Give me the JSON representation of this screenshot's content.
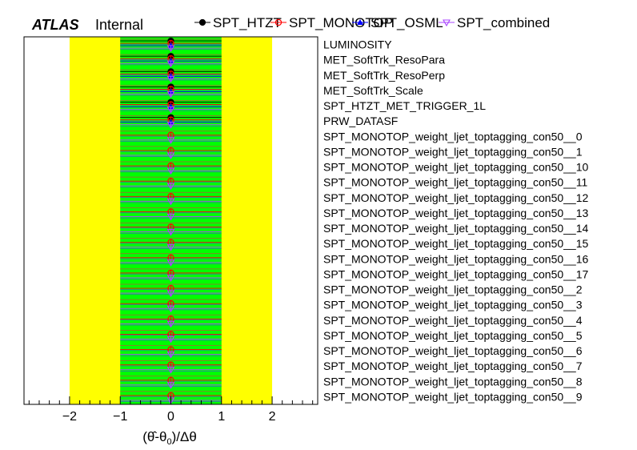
{
  "chart_data": {
    "type": "scatter",
    "experiment": "ATLAS",
    "status": "Internal",
    "xlabel": "(θ̂-θ0)/Δθ",
    "xlim": [
      -2.9,
      2.9
    ],
    "xticks": [
      "−2",
      "−1",
      "0",
      "1",
      "2"
    ],
    "xtick_values": [
      -2,
      -1,
      0,
      1,
      2
    ],
    "band_2sigma": [
      -2,
      2
    ],
    "band_1sigma": [
      -1,
      1
    ],
    "band_colors": {
      "outer": "#ffff00",
      "inner": "#00ff00"
    },
    "nuisance_parameters": [
      "LUMINOSITY",
      "MET_SoftTrk_ResoPara",
      "MET_SoftTrk_ResoPerp",
      "MET_SoftTrk_Scale",
      "SPT_HTZT_MET_TRIGGER_1L",
      "PRW_DATASF",
      "SPT_MONOTOP_weight_ljet_toptagging_con50__0",
      "SPT_MONOTOP_weight_ljet_toptagging_con50__1",
      "SPT_MONOTOP_weight_ljet_toptagging_con50__10",
      "SPT_MONOTOP_weight_ljet_toptagging_con50__11",
      "SPT_MONOTOP_weight_ljet_toptagging_con50__12",
      "SPT_MONOTOP_weight_ljet_toptagging_con50__13",
      "SPT_MONOTOP_weight_ljet_toptagging_con50__14",
      "SPT_MONOTOP_weight_ljet_toptagging_con50__15",
      "SPT_MONOTOP_weight_ljet_toptagging_con50__16",
      "SPT_MONOTOP_weight_ljet_toptagging_con50__17",
      "SPT_MONOTOP_weight_ljet_toptagging_con50__2",
      "SPT_MONOTOP_weight_ljet_toptagging_con50__3",
      "SPT_MONOTOP_weight_ljet_toptagging_con50__4",
      "SPT_MONOTOP_weight_ljet_toptagging_con50__5",
      "SPT_MONOTOP_weight_ljet_toptagging_con50__6",
      "SPT_MONOTOP_weight_ljet_toptagging_con50__7",
      "SPT_MONOTOP_weight_ljet_toptagging_con50__8",
      "SPT_MONOTOP_weight_ljet_toptagging_con50__9"
    ],
    "series": [
      {
        "name": "SPT_HTZT",
        "marker": "circle",
        "color": "#000000",
        "values": [
          0,
          0,
          0,
          0,
          0,
          0,
          null,
          null,
          null,
          null,
          null,
          null,
          null,
          null,
          null,
          null,
          null,
          null,
          null,
          null,
          null,
          null,
          null,
          null
        ],
        "errors": [
          1,
          1,
          1,
          1,
          1,
          1,
          null,
          null,
          null,
          null,
          null,
          null,
          null,
          null,
          null,
          null,
          null,
          null,
          null,
          null,
          null,
          null,
          null,
          null
        ]
      },
      {
        "name": "SPT_MONOTOP",
        "marker": "open-circle",
        "color": "#ff0000",
        "values": [
          0,
          0,
          0,
          0,
          0,
          0,
          0,
          0,
          0,
          0,
          0,
          0,
          0,
          0,
          0,
          0,
          0,
          0,
          0,
          0,
          0,
          0,
          0,
          0
        ],
        "errors": [
          1,
          1,
          1,
          1,
          1,
          1,
          1,
          1,
          1,
          1,
          1,
          1,
          1,
          1,
          1,
          1,
          1,
          1,
          1,
          1,
          1,
          1,
          1,
          1
        ]
      },
      {
        "name": "SPT_OSML",
        "marker": "triangle",
        "color": "#0000ff",
        "values": [
          0,
          0,
          0,
          0,
          0,
          0,
          null,
          null,
          null,
          null,
          null,
          null,
          null,
          null,
          null,
          null,
          null,
          null,
          null,
          null,
          null,
          null,
          null,
          null
        ],
        "errors": [
          1,
          1,
          1,
          1,
          1,
          1,
          null,
          null,
          null,
          null,
          null,
          null,
          null,
          null,
          null,
          null,
          null,
          null,
          null,
          null,
          null,
          null,
          null,
          null
        ]
      },
      {
        "name": "SPT_combined",
        "marker": "open-triangle-down",
        "color": "#aa44ff",
        "values": [
          0,
          0,
          0,
          0,
          0,
          0,
          0,
          0,
          0,
          0,
          0,
          0,
          0,
          0,
          0,
          0,
          0,
          0,
          0,
          0,
          0,
          0,
          0,
          0
        ],
        "errors": [
          1,
          1,
          1,
          1,
          1,
          1,
          1,
          1,
          1,
          1,
          1,
          1,
          1,
          1,
          1,
          1,
          1,
          1,
          1,
          1,
          1,
          1,
          1,
          1
        ]
      }
    ],
    "legend_placement": "top"
  }
}
